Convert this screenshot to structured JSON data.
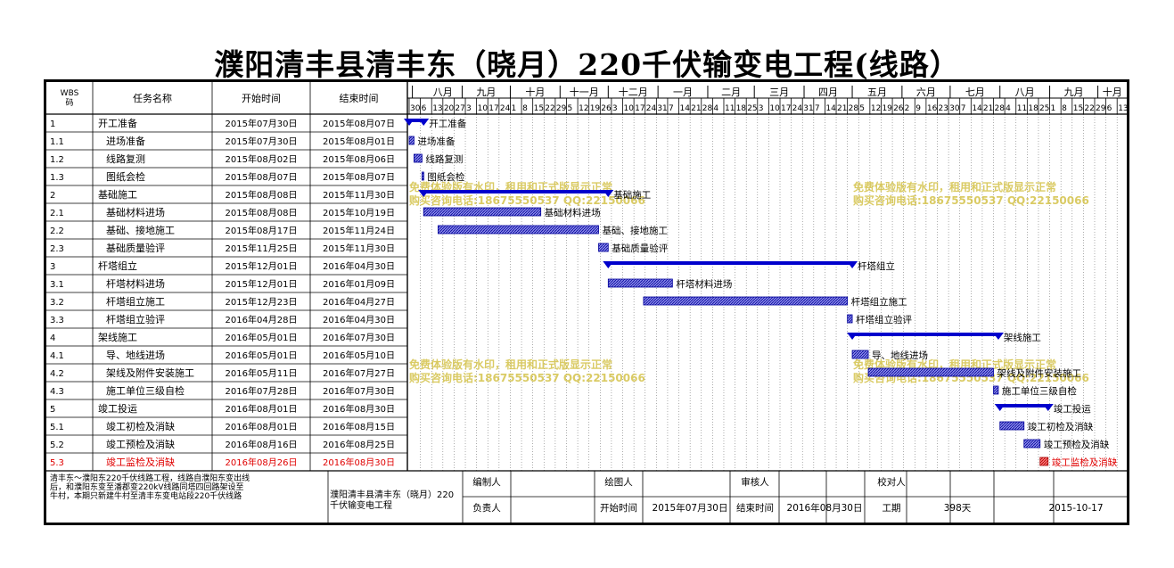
{
  "title": "濮阳清丰县清丰东（晓月）220千伏输变电工程(线路）",
  "colors": {
    "bar": "#0000cc",
    "hatch": "#3333cc",
    "milestone": "#cc0000",
    "watermark": "#d4c24a",
    "highlight_text": "#e00000"
  },
  "headers": {
    "wbs": "WBS码",
    "name": "任务名称",
    "start": "开始时间",
    "end": "结束时间"
  },
  "months": [
    "八月",
    "九月",
    "十月",
    "十一月",
    "十二月",
    "一月",
    "二月",
    "三月",
    "四月",
    "五月",
    "六月",
    "七月",
    "八月",
    "九月",
    "十月"
  ],
  "week_ticks": [
    "30",
    "6",
    "13",
    "20",
    "27",
    "3",
    "10",
    "17",
    "24",
    "1",
    "8",
    "15",
    "22",
    "29",
    "5",
    "12",
    "19",
    "26",
    "3",
    "10",
    "17",
    "24",
    "31",
    "7",
    "14",
    "21",
    "28",
    "4",
    "11",
    "18",
    "25",
    "3",
    "10",
    "17",
    "24",
    "31",
    "7",
    "14",
    "21",
    "28",
    "5",
    "12",
    "19",
    "26",
    "2",
    "9",
    "16",
    "23",
    "30",
    "7",
    "14",
    "21",
    "28",
    "4",
    "11",
    "18",
    "25",
    "1",
    "8",
    "15",
    "22",
    "29",
    "6",
    "13"
  ],
  "chart_data": {
    "type": "gantt",
    "time_range": [
      "2015-07-30",
      "2016-10-19"
    ],
    "tasks": [
      {
        "wbs": "1",
        "name": "开工准备",
        "start": "2015年07月30日",
        "end": "2015年08月07日",
        "s": "2015-07-30",
        "e": "2015-08-07",
        "kind": "summary",
        "level": 1,
        "label": "开工准备"
      },
      {
        "wbs": "1.1",
        "name": "进场准备",
        "start": "2015年07月30日",
        "end": "2015年08月01日",
        "s": "2015-07-30",
        "e": "2015-08-01",
        "kind": "task",
        "level": 2,
        "label": "进场准备"
      },
      {
        "wbs": "1.2",
        "name": "线路复测",
        "start": "2015年08月02日",
        "end": "2015年08月06日",
        "s": "2015-08-02",
        "e": "2015-08-06",
        "kind": "task",
        "level": 2,
        "label": "线路复测"
      },
      {
        "wbs": "1.3",
        "name": "图纸会检",
        "start": "2015年08月07日",
        "end": "2015年08月07日",
        "s": "2015-08-07",
        "e": "2015-08-07",
        "kind": "task",
        "level": 2,
        "label": "图纸会检"
      },
      {
        "wbs": "2",
        "name": "基础施工",
        "start": "2015年08月08日",
        "end": "2015年11月30日",
        "s": "2015-08-08",
        "e": "2015-11-30",
        "kind": "summary",
        "level": 1,
        "label": "基础施工"
      },
      {
        "wbs": "2.1",
        "name": "基础材料进场",
        "start": "2015年08月08日",
        "end": "2015年10月19日",
        "s": "2015-08-08",
        "e": "2015-10-19",
        "kind": "task",
        "level": 2,
        "label": "基础材料进场"
      },
      {
        "wbs": "2.2",
        "name": "基础、接地施工",
        "start": "2015年08月17日",
        "end": "2015年11月24日",
        "s": "2015-08-17",
        "e": "2015-11-24",
        "kind": "task",
        "level": 2,
        "label": "基础、接地施工"
      },
      {
        "wbs": "2.3",
        "name": "基础质量验评",
        "start": "2015年11月25日",
        "end": "2015年11月30日",
        "s": "2015-11-25",
        "e": "2015-11-30",
        "kind": "task",
        "level": 2,
        "label": "基础质量验评"
      },
      {
        "wbs": "3",
        "name": "杆塔组立",
        "start": "2015年12月01日",
        "end": "2016年04月30日",
        "s": "2015-12-01",
        "e": "2016-04-30",
        "kind": "summary",
        "level": 1,
        "label": "杆塔组立"
      },
      {
        "wbs": "3.1",
        "name": "杆塔材料进场",
        "start": "2015年12月01日",
        "end": "2016年01月09日",
        "s": "2015-12-01",
        "e": "2016-01-09",
        "kind": "task",
        "level": 2,
        "label": "杆塔材料进场"
      },
      {
        "wbs": "3.2",
        "name": "杆塔组立施工",
        "start": "2015年12月23日",
        "end": "2016年04月27日",
        "s": "2015-12-23",
        "e": "2016-04-27",
        "kind": "task",
        "level": 2,
        "label": "杆塔组立施工"
      },
      {
        "wbs": "3.3",
        "name": "杆塔组立验评",
        "start": "2016年04月28日",
        "end": "2016年04月30日",
        "s": "2016-04-28",
        "e": "2016-04-30",
        "kind": "task",
        "level": 2,
        "label": "杆塔组立验评"
      },
      {
        "wbs": "4",
        "name": "架线施工",
        "start": "2016年05月01日",
        "end": "2016年07月30日",
        "s": "2016-05-01",
        "e": "2016-07-30",
        "kind": "summary",
        "level": 1,
        "label": "架线施工"
      },
      {
        "wbs": "4.1",
        "name": "导、地线进场",
        "start": "2016年05月01日",
        "end": "2016年05月10日",
        "s": "2016-05-01",
        "e": "2016-05-10",
        "kind": "task",
        "level": 2,
        "label": "导、地线进场"
      },
      {
        "wbs": "4.2",
        "name": "架线及附件安装施工",
        "start": "2016年05月11日",
        "end": "2016年07月27日",
        "s": "2016-05-11",
        "e": "2016-07-27",
        "kind": "task",
        "level": 2,
        "label": "架线及附件安装施工"
      },
      {
        "wbs": "4.3",
        "name": "施工单位三级自检",
        "start": "2016年07月28日",
        "end": "2016年07月30日",
        "s": "2016-07-28",
        "e": "2016-07-30",
        "kind": "task",
        "level": 2,
        "label": "施工单位三级自检"
      },
      {
        "wbs": "5",
        "name": "竣工投运",
        "start": "2016年08月01日",
        "end": "2016年08月30日",
        "s": "2016-08-01",
        "e": "2016-08-30",
        "kind": "summary",
        "level": 1,
        "label": "竣工投运"
      },
      {
        "wbs": "5.1",
        "name": "竣工初检及消缺",
        "start": "2016年08月01日",
        "end": "2016年08月15日",
        "s": "2016-08-01",
        "e": "2016-08-15",
        "kind": "task",
        "level": 2,
        "label": "竣工初检及消缺"
      },
      {
        "wbs": "5.2",
        "name": "竣工预检及消缺",
        "start": "2016年08月16日",
        "end": "2016年08月25日",
        "s": "2016-08-16",
        "e": "2016-08-25",
        "kind": "task",
        "level": 2,
        "label": "竣工预检及消缺"
      },
      {
        "wbs": "5.3",
        "name": "竣工监检及消缺",
        "start": "2016年08月26日",
        "end": "2016年08月30日",
        "s": "2016-08-26",
        "e": "2016-08-30",
        "kind": "critical",
        "level": 2,
        "label": "竣工监检及消缺"
      }
    ]
  },
  "watermarks": [
    {
      "line1": "免费体验版有水印，租用和正式版显示正常",
      "line2": "购买咨询电话:18675550537 QQ:22150066"
    },
    {
      "line1": "免费体验版有水印，租用和正式版显示正常",
      "line2": "购买咨询电话:18675550537 QQ:22150066"
    },
    {
      "line1": "免费体验版有水印，租用和正式版显示正常",
      "line2": "购买咨询电话:18675550537 QQ:22150066"
    },
    {
      "line1": "免费体验版有水印，租用和正式版显示正常",
      "line2": "购买咨询电话:18675550537 QQ:22150066"
    }
  ],
  "footer": {
    "description": "清丰东～濮阳东220千伏线路工程，线路自濮阳东变出线后，和濮阳东变至潘郡变220kV线路同塔四回路架设至牛村，本期只新建牛村至清丰东变电站段220千伏线路",
    "project_name": "濮阳清丰县清丰东（晓月）220千伏输变电工程",
    "labels": {
      "compiler": "编制人",
      "drafter": "绘图人",
      "reviewer": "审核人",
      "proofreader": "校对人",
      "responsible": "负责人",
      "start_time": "开始时间",
      "end_time": "结束时间",
      "duration": "工期"
    },
    "values": {
      "start_time": "2015年07月30日",
      "end_time": "2016年08月30日",
      "duration": "398天",
      "date": "2015-10-17"
    }
  }
}
